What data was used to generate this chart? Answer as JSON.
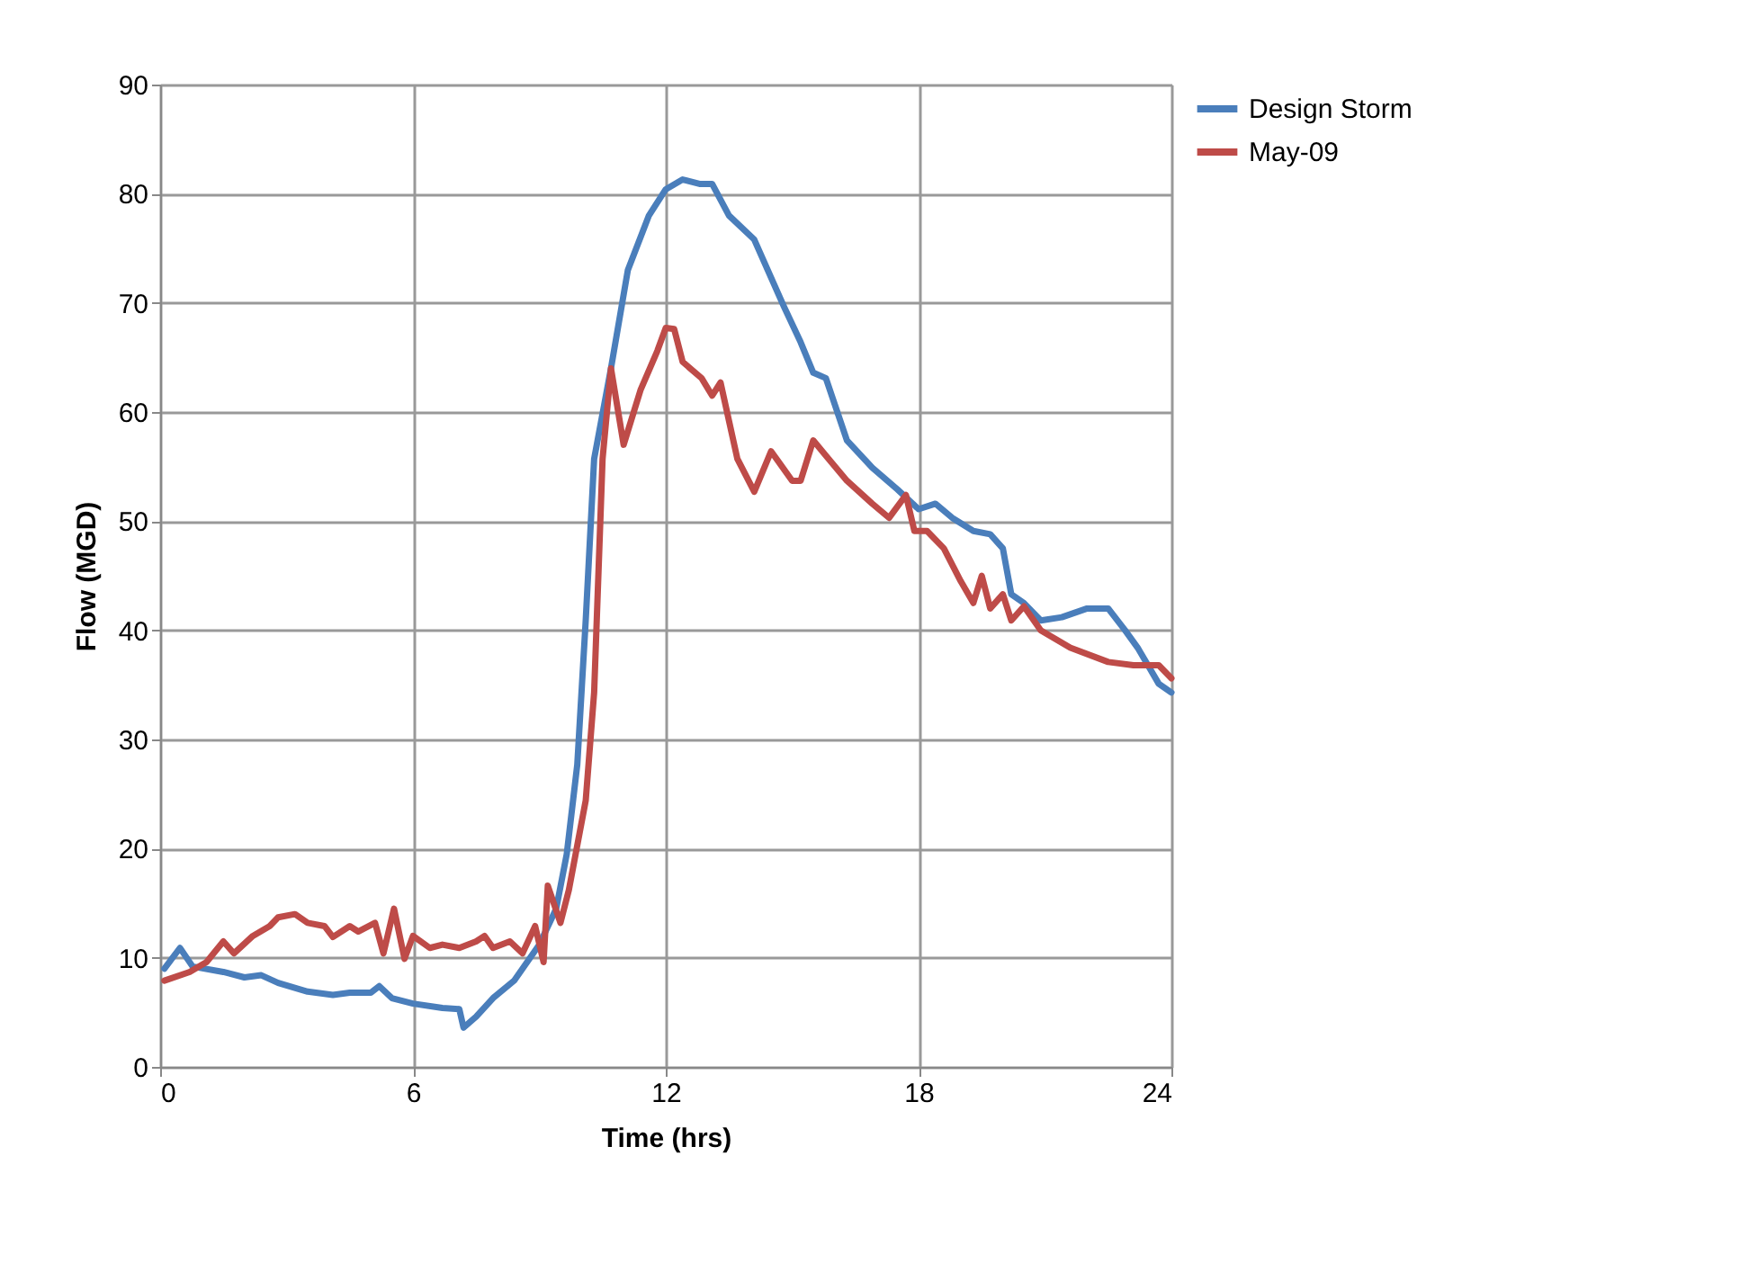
{
  "chart_data": {
    "type": "line",
    "xlabel": "Time (hrs)",
    "ylabel": "Flow (MGD)",
    "xlim": [
      0,
      24
    ],
    "xticks": [
      0,
      6,
      12,
      18,
      24
    ],
    "ylim": [
      0,
      90
    ],
    "yticks": [
      0,
      10,
      20,
      30,
      40,
      50,
      60,
      70,
      80,
      90
    ],
    "grid": true,
    "legend": "right",
    "marker": "none",
    "line_style": "solid",
    "series": [
      {
        "name": "Design Storm",
        "color": "#4a7ebb",
        "x": [
          0.1,
          0.47,
          0.77,
          1.5,
          2.0,
          2.4,
          2.8,
          3.5,
          4.1,
          4.5,
          5.0,
          5.2,
          5.5,
          6.0,
          6.7,
          7.1,
          7.2,
          7.5,
          7.9,
          8.4,
          9.0,
          9.4,
          9.65,
          9.9,
          10.1,
          10.3,
          10.7,
          11.1,
          11.6,
          12.0,
          12.4,
          12.8,
          13.1,
          13.5,
          14.1,
          14.8,
          15.2,
          15.5,
          15.8,
          16.3,
          16.9,
          17.5,
          18.0,
          18.4,
          18.8,
          19.3,
          19.7,
          20.0,
          20.2,
          20.5,
          20.9,
          21.4,
          22.0,
          22.5,
          22.9,
          23.2,
          23.7,
          24
        ],
        "values": [
          9,
          10.9,
          9.2,
          8.7,
          8.2,
          8.4,
          7.7,
          6.9,
          6.6,
          6.8,
          6.8,
          7.4,
          6.3,
          5.8,
          5.4,
          5.3,
          3.6,
          4.6,
          6.3,
          7.9,
          11.2,
          14.5,
          19.5,
          27.7,
          40.9,
          55.7,
          64,
          73,
          78,
          80.4,
          81.3,
          80.9,
          80.9,
          78,
          75.8,
          69.7,
          66.4,
          63.6,
          63.1,
          57.4,
          54.9,
          52.9,
          51.1,
          51.6,
          50.3,
          49.1,
          48.8,
          47.5,
          43.3,
          42.5,
          40.9,
          41.2,
          42,
          42,
          40,
          38.4,
          35.1,
          34.3
        ]
      },
      {
        "name": "May-09",
        "color": "#be4b48",
        "x": [
          0.1,
          0.7,
          1.1,
          1.5,
          1.75,
          2.2,
          2.6,
          2.8,
          3.2,
          3.5,
          3.9,
          4.1,
          4.5,
          4.7,
          5.1,
          5.3,
          5.55,
          5.8,
          6.0,
          6.4,
          6.7,
          7.1,
          7.5,
          7.7,
          7.9,
          8.3,
          8.6,
          8.9,
          9.1,
          9.2,
          9.5,
          9.7,
          10.1,
          10.3,
          10.5,
          10.7,
          11.0,
          11.4,
          11.8,
          12.0,
          12.2,
          12.4,
          12.85,
          13.1,
          13.3,
          13.7,
          14.1,
          14.5,
          15.0,
          15.2,
          15.5,
          15.8,
          16.3,
          16.9,
          17.3,
          17.7,
          17.9,
          18.2,
          18.6,
          19.0,
          19.3,
          19.5,
          19.7,
          20.0,
          20.2,
          20.5,
          20.9,
          21.6,
          22.5,
          23.1,
          23.7,
          24
        ],
        "values": [
          7.9,
          8.7,
          9.6,
          11.5,
          10.4,
          12,
          12.9,
          13.7,
          14,
          13.2,
          12.9,
          11.9,
          12.9,
          12.4,
          13.2,
          10.4,
          14.5,
          9.9,
          12,
          10.9,
          11.2,
          10.9,
          11.5,
          12,
          10.9,
          11.5,
          10.4,
          12.9,
          9.6,
          16.6,
          13.2,
          16.2,
          24.4,
          34.3,
          55.7,
          64,
          57,
          62,
          65.6,
          67.7,
          67.6,
          64.6,
          63.1,
          61.5,
          62.7,
          55.7,
          52.7,
          56.4,
          53.7,
          53.7,
          57.4,
          56,
          53.7,
          51.6,
          50.3,
          52.4,
          49.1,
          49.1,
          47.5,
          44.5,
          42.5,
          45,
          42,
          43.3,
          40.9,
          42.2,
          40,
          38.4,
          37.1,
          36.8,
          36.8,
          35.6
        ]
      }
    ]
  }
}
